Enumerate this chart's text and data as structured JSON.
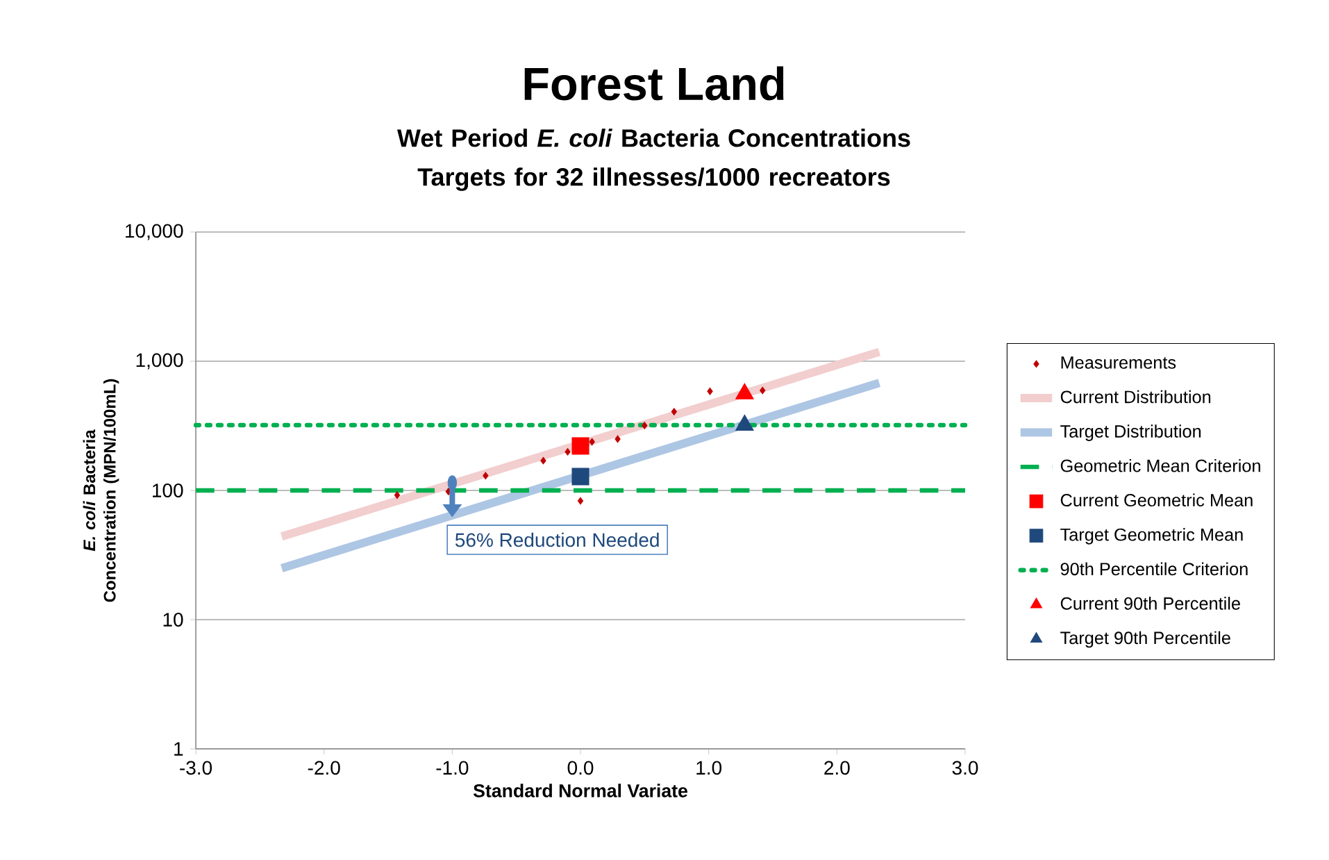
{
  "chart_data": {
    "type": "scatter",
    "title": "Forest Land",
    "subtitle": "Wet Period *E. coli* Bacteria Concentrations Targets for 32 illnesses/1000 recreators",
    "xlabel": "Standard Normal Variate",
    "ylabel": "*E. coli* Bacteria Concentration (MPN/100mL)",
    "xlim": [
      -3,
      3
    ],
    "ylim": [
      1,
      10000
    ],
    "log": "y",
    "grid": "y",
    "legend": "right",
    "xticks": [
      {
        "value": -3,
        "label": "-3.0"
      },
      {
        "value": -2,
        "label": "-2.0"
      },
      {
        "value": -1,
        "label": "-1.0"
      },
      {
        "value": 0,
        "label": "0.0"
      },
      {
        "value": 1,
        "label": "1.0"
      },
      {
        "value": 2,
        "label": "2.0"
      },
      {
        "value": 3,
        "label": "3.0"
      }
    ],
    "yticks": [
      {
        "value": 1,
        "label": "1"
      },
      {
        "value": 10,
        "label": "10"
      },
      {
        "value": 100,
        "label": "100"
      },
      {
        "value": 1000,
        "label": "1,000"
      },
      {
        "value": 10000,
        "label": "10,000"
      }
    ],
    "annotations": [
      {
        "text": "56% Reduction Needed",
        "x": -1,
        "y": 62
      }
    ],
    "series": [
      {
        "name": "Measurements",
        "marker": "diamond",
        "color": "#c00000",
        "x": [
          -1.43,
          -1.03,
          -0.74,
          -0.29,
          -0.1,
          0.0,
          0.09,
          0.29,
          0.5,
          0.73,
          1.01,
          1.42
        ],
        "values": [
          92,
          98,
          130,
          170,
          199,
          83,
          238,
          250,
          318,
          407,
          585,
          594
        ]
      },
      {
        "name": "Current Distribution",
        "type": "line",
        "line_style": "solid",
        "color": "#f2cece",
        "x": [
          -2.33,
          2.33
        ],
        "values": [
          44,
          1180
        ]
      },
      {
        "name": "Target Distribution",
        "type": "line",
        "line_style": "solid",
        "color": "#adc6e3",
        "x": [
          -2.33,
          2.33
        ],
        "values": [
          25,
          680
        ]
      },
      {
        "name": "Geometric Mean Criterion",
        "type": "line",
        "line_style": "dashed",
        "color": "#00b050",
        "x": [
          -3,
          3
        ],
        "values": [
          100,
          100
        ]
      },
      {
        "name": "Current Geometric Mean",
        "marker": "square",
        "color": "#ff0000",
        "x": [
          0
        ],
        "values": [
          221
        ]
      },
      {
        "name": "Target Geometric Mean",
        "marker": "square",
        "color": "#1f497d",
        "x": [
          0
        ],
        "values": [
          128
        ]
      },
      {
        "name": "90th Percentile Criterion",
        "type": "line",
        "line_style": "dotted",
        "color": "#00b050",
        "x": [
          -3,
          3
        ],
        "values": [
          320,
          320
        ]
      },
      {
        "name": "Current 90th Percentile",
        "marker": "triangle",
        "color": "#ff0000",
        "x": [
          1.28
        ],
        "values": [
          560
        ]
      },
      {
        "name": "Target 90th Percentile",
        "marker": "triangle",
        "color": "#1f497d",
        "x": [
          1.28
        ],
        "values": [
          320
        ]
      }
    ]
  }
}
